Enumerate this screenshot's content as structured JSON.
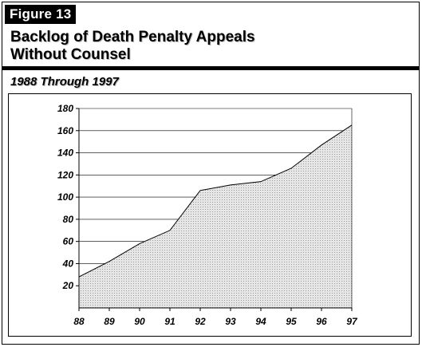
{
  "figure": {
    "label": "Figure 13"
  },
  "title": {
    "line1": "Backlog of Death Penalty Appeals",
    "line2": "Without Counsel"
  },
  "subtitle": "1988 Through 1997",
  "colors": {
    "area_fill": "#d4d4d4",
    "area_stroke": "#000000",
    "grid": "#000000"
  },
  "chart_data": {
    "type": "area",
    "title": "Backlog of Death Penalty Appeals Without Counsel",
    "subtitle": "1988 Through 1997",
    "categories": [
      "88",
      "89",
      "90",
      "91",
      "92",
      "93",
      "94",
      "95",
      "96",
      "97"
    ],
    "values": [
      28,
      42,
      58,
      70,
      106,
      111,
      114,
      126,
      147,
      165
    ],
    "ylim": [
      0,
      180
    ],
    "yticks": [
      20,
      40,
      60,
      80,
      100,
      120,
      140,
      160,
      180
    ],
    "xlabel": "",
    "ylabel": "",
    "grid": true,
    "legend": "none"
  }
}
